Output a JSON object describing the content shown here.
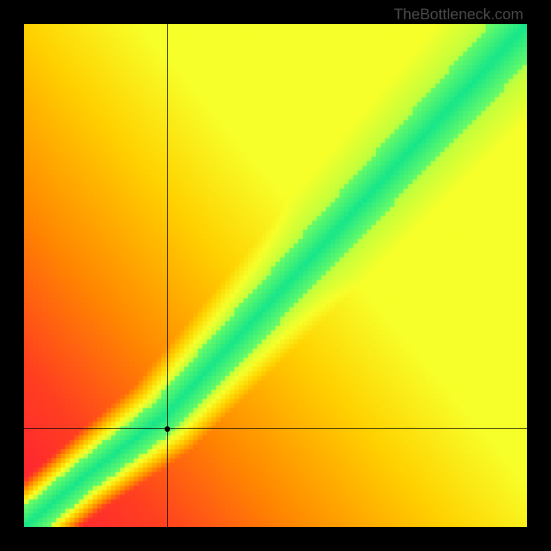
{
  "watermark": "TheBottleneck.com",
  "chart": {
    "type": "heatmap",
    "canvas_size": 730,
    "grid_n": 110,
    "background_color": "#000000",
    "color_stops": [
      {
        "t": 0.0,
        "hex": "#ff1a3a"
      },
      {
        "t": 0.18,
        "hex": "#ff4020"
      },
      {
        "t": 0.35,
        "hex": "#ff8800"
      },
      {
        "t": 0.55,
        "hex": "#ffd200"
      },
      {
        "t": 0.7,
        "hex": "#f7ff2a"
      },
      {
        "t": 0.8,
        "hex": "#c8ff3a"
      },
      {
        "t": 0.88,
        "hex": "#7aff60"
      },
      {
        "t": 1.0,
        "hex": "#16e68a"
      }
    ],
    "base_field": {
      "comment": "background warmth rises toward top-right, score = (u + (1-v)) / 2 mapped into lower part of palette",
      "max_base": 0.7
    },
    "ridge": {
      "comment": "green diagonal band, piecewise from origin",
      "segments": [
        {
          "u0": 0.0,
          "v0": 1.0,
          "u1": 0.12,
          "v1": 0.9
        },
        {
          "u0": 0.12,
          "v0": 0.9,
          "u1": 0.28,
          "v1": 0.78
        },
        {
          "u0": 0.28,
          "v0": 0.78,
          "u1": 1.0,
          "v1": 0.0
        }
      ],
      "core_half_width": 0.03,
      "yellow_half_width": 0.075,
      "taper_start": 0.1,
      "taper_end_width_mult": 1.85
    },
    "crosshair": {
      "u": 0.285,
      "v": 0.805,
      "line_color": "#000000",
      "line_width": 1,
      "dot_radius": 4,
      "dot_color": "#000000"
    }
  }
}
